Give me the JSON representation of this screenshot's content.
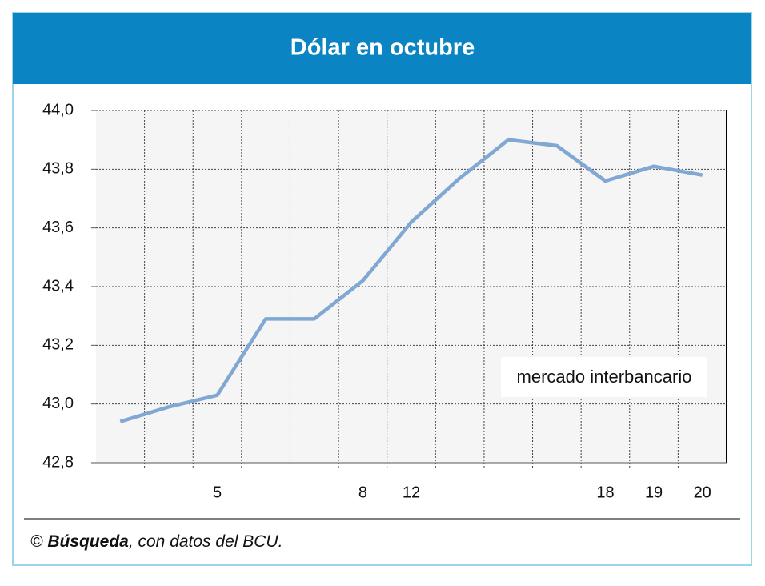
{
  "chart_data": {
    "type": "line",
    "title": "Dólar en octubre",
    "categories": [
      null,
      null,
      "5",
      null,
      null,
      "8",
      "12",
      null,
      null,
      null,
      "18",
      "19",
      "20"
    ],
    "series": [
      {
        "name": "mercado interbancario",
        "color": "#80a8d2",
        "values": [
          42.94,
          42.99,
          43.03,
          43.29,
          43.29,
          43.42,
          43.62,
          43.77,
          43.9,
          43.88,
          43.76,
          43.81,
          43.78
        ]
      }
    ],
    "ylim": [
      42.8,
      44.0
    ],
    "yticks": [
      {
        "value": 42.8,
        "label": "42,8"
      },
      {
        "value": 43.0,
        "label": "43,0"
      },
      {
        "value": 43.2,
        "label": "43,2"
      },
      {
        "value": 43.4,
        "label": "43,4"
      },
      {
        "value": 43.6,
        "label": "43,6"
      },
      {
        "value": 43.8,
        "label": "43,8"
      },
      {
        "value": 44.0,
        "label": "44,0"
      }
    ],
    "grid": true,
    "source": {
      "prefix": "© ",
      "bold": "Búsqueda",
      "suffix": ", con datos del BCU."
    }
  }
}
